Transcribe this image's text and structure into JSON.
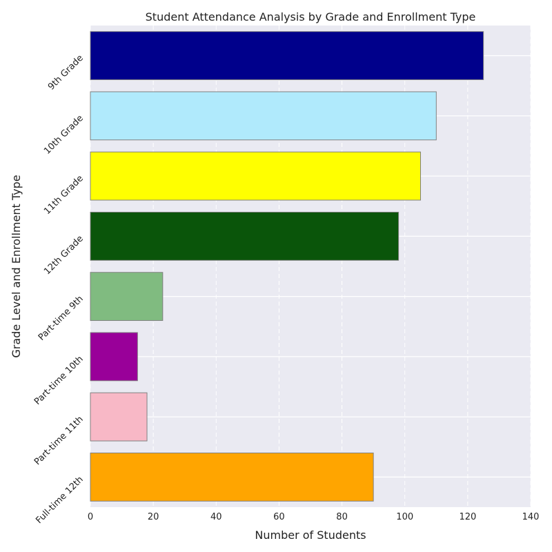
{
  "chart_data": {
    "type": "bar",
    "orientation": "horizontal",
    "title": "Student Attendance Analysis by Grade and Enrollment Type",
    "xlabel": "Number of Students",
    "ylabel": "Grade Level and Enrollment Type",
    "xlim": [
      0,
      140
    ],
    "xticks": [
      0,
      20,
      40,
      60,
      80,
      100,
      120,
      140
    ],
    "grid": true,
    "background": "#eaeaf2",
    "categories": [
      "9th Grade",
      "10th Grade",
      "11th Grade",
      "12th Grade",
      "Part-time 9th",
      "Part-time 10th",
      "Part-time 11th",
      "Full-time 12th"
    ],
    "values": [
      125,
      110,
      105,
      98,
      23,
      15,
      18,
      90
    ],
    "colors": [
      "#00008b",
      "#b0eafc",
      "#ffff00",
      "#0a550a",
      "#80bb80",
      "#990099",
      "#f8b8c6",
      "#ffa500"
    ]
  }
}
